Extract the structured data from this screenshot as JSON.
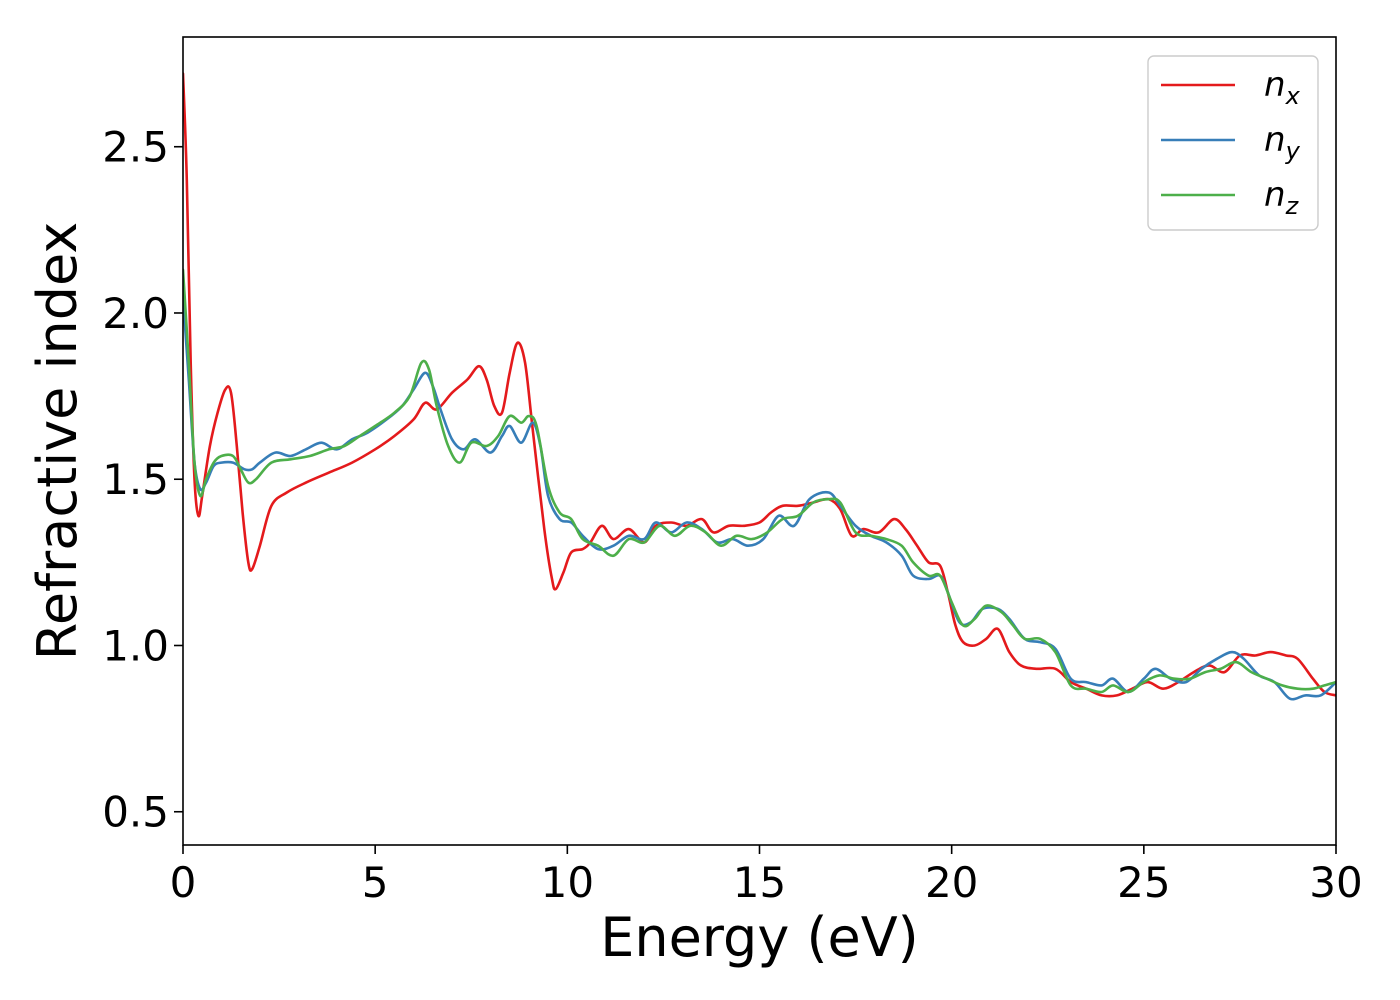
{
  "chart_data": {
    "type": "line",
    "title": "",
    "xlabel": "Energy (eV)",
    "ylabel": "Refractive index",
    "xlim": [
      0,
      30
    ],
    "ylim": [
      0.4,
      2.83
    ],
    "xticks": [
      0,
      5,
      10,
      15,
      20,
      25,
      30
    ],
    "xtick_labels": [
      "0",
      "5",
      "10",
      "15",
      "20",
      "25",
      "30"
    ],
    "yticks": [
      0.5,
      1.0,
      1.5,
      2.0,
      2.5
    ],
    "ytick_labels": [
      "0.5",
      "1.0",
      "1.5",
      "2.0",
      "2.5"
    ],
    "grid": false,
    "legend_position": "top-right",
    "series": [
      {
        "name": "n_x",
        "label_main": "n",
        "label_sub": "x",
        "color": "#e41a1c",
        "points": [
          [
            0,
            2.72
          ],
          [
            0.1,
            2.4
          ],
          [
            0.2,
            1.85
          ],
          [
            0.3,
            1.5
          ],
          [
            0.4,
            1.39
          ],
          [
            0.5,
            1.45
          ],
          [
            0.7,
            1.6
          ],
          [
            0.9,
            1.7
          ],
          [
            1.1,
            1.77
          ],
          [
            1.25,
            1.76
          ],
          [
            1.4,
            1.6
          ],
          [
            1.55,
            1.4
          ],
          [
            1.7,
            1.25
          ],
          [
            1.8,
            1.23
          ],
          [
            2.0,
            1.3
          ],
          [
            2.3,
            1.42
          ],
          [
            2.7,
            1.46
          ],
          [
            3.2,
            1.49
          ],
          [
            3.8,
            1.52
          ],
          [
            4.4,
            1.55
          ],
          [
            5.0,
            1.59
          ],
          [
            5.5,
            1.63
          ],
          [
            6.0,
            1.68
          ],
          [
            6.3,
            1.73
          ],
          [
            6.6,
            1.71
          ],
          [
            7.0,
            1.76
          ],
          [
            7.4,
            1.8
          ],
          [
            7.7,
            1.84
          ],
          [
            7.9,
            1.8
          ],
          [
            8.1,
            1.72
          ],
          [
            8.3,
            1.7
          ],
          [
            8.5,
            1.82
          ],
          [
            8.7,
            1.91
          ],
          [
            8.9,
            1.85
          ],
          [
            9.1,
            1.65
          ],
          [
            9.4,
            1.35
          ],
          [
            9.6,
            1.2
          ],
          [
            9.7,
            1.17
          ],
          [
            9.9,
            1.22
          ],
          [
            10.1,
            1.28
          ],
          [
            10.4,
            1.29
          ],
          [
            10.6,
            1.31
          ],
          [
            10.9,
            1.36
          ],
          [
            11.2,
            1.32
          ],
          [
            11.6,
            1.35
          ],
          [
            12.0,
            1.31
          ],
          [
            12.3,
            1.36
          ],
          [
            12.7,
            1.37
          ],
          [
            13.1,
            1.36
          ],
          [
            13.5,
            1.38
          ],
          [
            13.8,
            1.34
          ],
          [
            14.2,
            1.36
          ],
          [
            14.6,
            1.36
          ],
          [
            15.0,
            1.37
          ],
          [
            15.3,
            1.4
          ],
          [
            15.6,
            1.42
          ],
          [
            16.0,
            1.42
          ],
          [
            16.4,
            1.43
          ],
          [
            16.8,
            1.44
          ],
          [
            17.1,
            1.41
          ],
          [
            17.4,
            1.33
          ],
          [
            17.7,
            1.35
          ],
          [
            18.1,
            1.34
          ],
          [
            18.5,
            1.38
          ],
          [
            18.8,
            1.35
          ],
          [
            19.1,
            1.3
          ],
          [
            19.4,
            1.25
          ],
          [
            19.7,
            1.24
          ],
          [
            19.9,
            1.16
          ],
          [
            20.1,
            1.06
          ],
          [
            20.3,
            1.01
          ],
          [
            20.6,
            1.0
          ],
          [
            20.9,
            1.02
          ],
          [
            21.2,
            1.05
          ],
          [
            21.5,
            0.98
          ],
          [
            21.8,
            0.94
          ],
          [
            22.2,
            0.93
          ],
          [
            22.7,
            0.93
          ],
          [
            23.1,
            0.89
          ],
          [
            23.5,
            0.87
          ],
          [
            23.9,
            0.85
          ],
          [
            24.3,
            0.85
          ],
          [
            24.7,
            0.87
          ],
          [
            25.1,
            0.89
          ],
          [
            25.5,
            0.87
          ],
          [
            25.9,
            0.89
          ],
          [
            26.3,
            0.92
          ],
          [
            26.7,
            0.94
          ],
          [
            27.1,
            0.92
          ],
          [
            27.5,
            0.97
          ],
          [
            27.9,
            0.97
          ],
          [
            28.3,
            0.98
          ],
          [
            28.7,
            0.97
          ],
          [
            29.0,
            0.96
          ],
          [
            29.4,
            0.9
          ],
          [
            29.7,
            0.86
          ],
          [
            30,
            0.85
          ]
        ]
      },
      {
        "name": "n_y",
        "label_main": "n",
        "label_sub": "y",
        "color": "#377eb8",
        "points": [
          [
            0,
            2.05
          ],
          [
            0.15,
            1.8
          ],
          [
            0.3,
            1.55
          ],
          [
            0.45,
            1.47
          ],
          [
            0.6,
            1.49
          ],
          [
            0.8,
            1.54
          ],
          [
            1.0,
            1.55
          ],
          [
            1.3,
            1.55
          ],
          [
            1.6,
            1.53
          ],
          [
            1.8,
            1.53
          ],
          [
            2.0,
            1.55
          ],
          [
            2.4,
            1.58
          ],
          [
            2.8,
            1.57
          ],
          [
            3.2,
            1.59
          ],
          [
            3.6,
            1.61
          ],
          [
            4.0,
            1.59
          ],
          [
            4.4,
            1.62
          ],
          [
            4.8,
            1.64
          ],
          [
            5.3,
            1.68
          ],
          [
            5.7,
            1.72
          ],
          [
            6.0,
            1.77
          ],
          [
            6.3,
            1.82
          ],
          [
            6.5,
            1.78
          ],
          [
            6.7,
            1.71
          ],
          [
            7.0,
            1.62
          ],
          [
            7.3,
            1.59
          ],
          [
            7.6,
            1.62
          ],
          [
            8.0,
            1.58
          ],
          [
            8.3,
            1.63
          ],
          [
            8.5,
            1.66
          ],
          [
            8.8,
            1.61
          ],
          [
            9.1,
            1.67
          ],
          [
            9.3,
            1.6
          ],
          [
            9.5,
            1.45
          ],
          [
            9.8,
            1.38
          ],
          [
            10.1,
            1.37
          ],
          [
            10.4,
            1.33
          ],
          [
            10.8,
            1.29
          ],
          [
            11.2,
            1.3
          ],
          [
            11.6,
            1.33
          ],
          [
            12.0,
            1.32
          ],
          [
            12.3,
            1.37
          ],
          [
            12.7,
            1.34
          ],
          [
            13.1,
            1.37
          ],
          [
            13.5,
            1.35
          ],
          [
            13.9,
            1.31
          ],
          [
            14.3,
            1.32
          ],
          [
            14.7,
            1.3
          ],
          [
            15.1,
            1.32
          ],
          [
            15.5,
            1.39
          ],
          [
            15.9,
            1.36
          ],
          [
            16.3,
            1.44
          ],
          [
            16.8,
            1.46
          ],
          [
            17.1,
            1.42
          ],
          [
            17.5,
            1.36
          ],
          [
            17.9,
            1.33
          ],
          [
            18.3,
            1.31
          ],
          [
            18.7,
            1.27
          ],
          [
            19.0,
            1.21
          ],
          [
            19.4,
            1.2
          ],
          [
            19.7,
            1.21
          ],
          [
            19.9,
            1.16
          ],
          [
            20.2,
            1.07
          ],
          [
            20.5,
            1.07
          ],
          [
            20.8,
            1.11
          ],
          [
            21.2,
            1.11
          ],
          [
            21.5,
            1.08
          ],
          [
            21.9,
            1.02
          ],
          [
            22.3,
            1.01
          ],
          [
            22.7,
            0.99
          ],
          [
            23.1,
            0.9
          ],
          [
            23.5,
            0.89
          ],
          [
            23.9,
            0.88
          ],
          [
            24.2,
            0.9
          ],
          [
            24.6,
            0.86
          ],
          [
            25.0,
            0.9
          ],
          [
            25.3,
            0.93
          ],
          [
            25.7,
            0.9
          ],
          [
            26.1,
            0.89
          ],
          [
            26.5,
            0.93
          ],
          [
            26.9,
            0.96
          ],
          [
            27.3,
            0.98
          ],
          [
            27.6,
            0.96
          ],
          [
            28.0,
            0.91
          ],
          [
            28.4,
            0.89
          ],
          [
            28.8,
            0.84
          ],
          [
            29.2,
            0.85
          ],
          [
            29.6,
            0.85
          ],
          [
            30,
            0.89
          ]
        ]
      },
      {
        "name": "n_z",
        "label_main": "n",
        "label_sub": "z",
        "color": "#4daf4a",
        "points": [
          [
            0,
            2.13
          ],
          [
            0.15,
            1.85
          ],
          [
            0.3,
            1.55
          ],
          [
            0.45,
            1.45
          ],
          [
            0.6,
            1.5
          ],
          [
            0.8,
            1.55
          ],
          [
            1.0,
            1.57
          ],
          [
            1.3,
            1.57
          ],
          [
            1.5,
            1.53
          ],
          [
            1.7,
            1.49
          ],
          [
            1.9,
            1.5
          ],
          [
            2.3,
            1.55
          ],
          [
            2.8,
            1.56
          ],
          [
            3.3,
            1.57
          ],
          [
            3.8,
            1.59
          ],
          [
            4.2,
            1.6
          ],
          [
            4.6,
            1.63
          ],
          [
            5.0,
            1.66
          ],
          [
            5.5,
            1.7
          ],
          [
            5.9,
            1.75
          ],
          [
            6.2,
            1.85
          ],
          [
            6.4,
            1.83
          ],
          [
            6.6,
            1.72
          ],
          [
            6.9,
            1.6
          ],
          [
            7.2,
            1.55
          ],
          [
            7.5,
            1.61
          ],
          [
            7.9,
            1.6
          ],
          [
            8.2,
            1.63
          ],
          [
            8.5,
            1.69
          ],
          [
            8.8,
            1.67
          ],
          [
            9.0,
            1.69
          ],
          [
            9.2,
            1.66
          ],
          [
            9.5,
            1.48
          ],
          [
            9.8,
            1.4
          ],
          [
            10.1,
            1.38
          ],
          [
            10.4,
            1.32
          ],
          [
            10.8,
            1.3
          ],
          [
            11.2,
            1.27
          ],
          [
            11.6,
            1.32
          ],
          [
            12.0,
            1.31
          ],
          [
            12.4,
            1.36
          ],
          [
            12.8,
            1.33
          ],
          [
            13.2,
            1.36
          ],
          [
            13.6,
            1.34
          ],
          [
            14.0,
            1.3
          ],
          [
            14.4,
            1.33
          ],
          [
            14.8,
            1.32
          ],
          [
            15.2,
            1.34
          ],
          [
            15.6,
            1.38
          ],
          [
            16.0,
            1.39
          ],
          [
            16.4,
            1.43
          ],
          [
            16.8,
            1.44
          ],
          [
            17.1,
            1.43
          ],
          [
            17.5,
            1.34
          ],
          [
            17.9,
            1.33
          ],
          [
            18.3,
            1.32
          ],
          [
            18.7,
            1.3
          ],
          [
            19.0,
            1.25
          ],
          [
            19.4,
            1.21
          ],
          [
            19.7,
            1.21
          ],
          [
            20.0,
            1.13
          ],
          [
            20.3,
            1.06
          ],
          [
            20.6,
            1.08
          ],
          [
            20.9,
            1.12
          ],
          [
            21.3,
            1.1
          ],
          [
            21.6,
            1.06
          ],
          [
            21.9,
            1.02
          ],
          [
            22.3,
            1.02
          ],
          [
            22.7,
            0.98
          ],
          [
            23.1,
            0.88
          ],
          [
            23.5,
            0.87
          ],
          [
            23.9,
            0.86
          ],
          [
            24.2,
            0.88
          ],
          [
            24.6,
            0.86
          ],
          [
            25.0,
            0.89
          ],
          [
            25.4,
            0.91
          ],
          [
            25.8,
            0.9
          ],
          [
            26.2,
            0.9
          ],
          [
            26.6,
            0.92
          ],
          [
            27.0,
            0.93
          ],
          [
            27.4,
            0.95
          ],
          [
            27.8,
            0.92
          ],
          [
            28.2,
            0.9
          ],
          [
            28.6,
            0.88
          ],
          [
            29.0,
            0.87
          ],
          [
            29.4,
            0.87
          ],
          [
            29.7,
            0.88
          ],
          [
            30,
            0.89
          ]
        ]
      }
    ]
  }
}
